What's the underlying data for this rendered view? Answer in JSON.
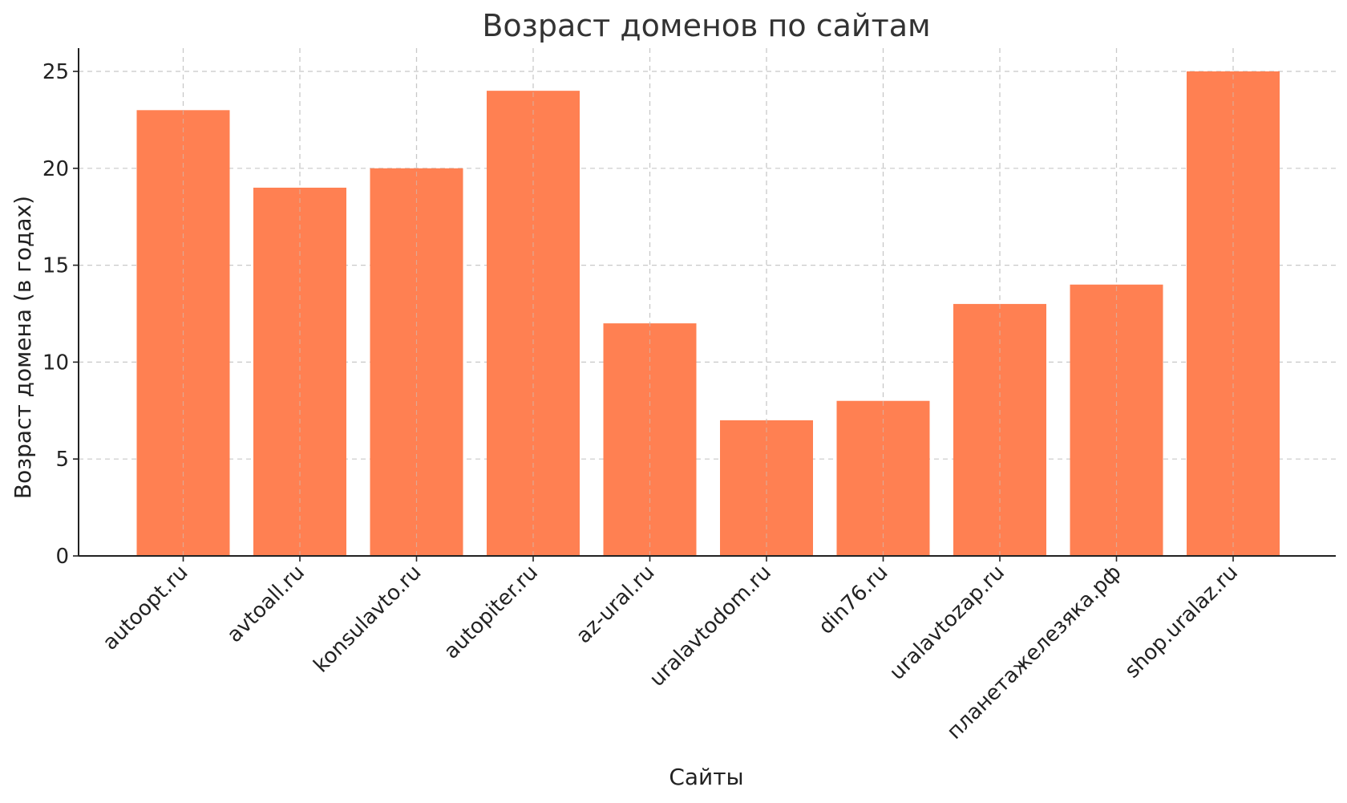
{
  "chart_data": {
    "type": "bar",
    "title": "Возраст доменов по сайтам",
    "xlabel": "Сайты",
    "ylabel": "Возраст домена (в годах)",
    "categories": [
      "autoopt.ru",
      "avtoall.ru",
      "konsulavto.ru",
      "autopiter.ru",
      "az-ural.ru",
      "uralavtodom.ru",
      "din76.ru",
      "uralavtozap.ru",
      "планетажелезяка.рф",
      "shop.uralaz.ru"
    ],
    "values": [
      23,
      19,
      20,
      24,
      12,
      7,
      8,
      13,
      14,
      25
    ],
    "ylim": [
      0,
      26.2
    ],
    "yticks": [
      0,
      5,
      10,
      15,
      20,
      25
    ],
    "grid": true,
    "bar_color": "#ff8052"
  }
}
